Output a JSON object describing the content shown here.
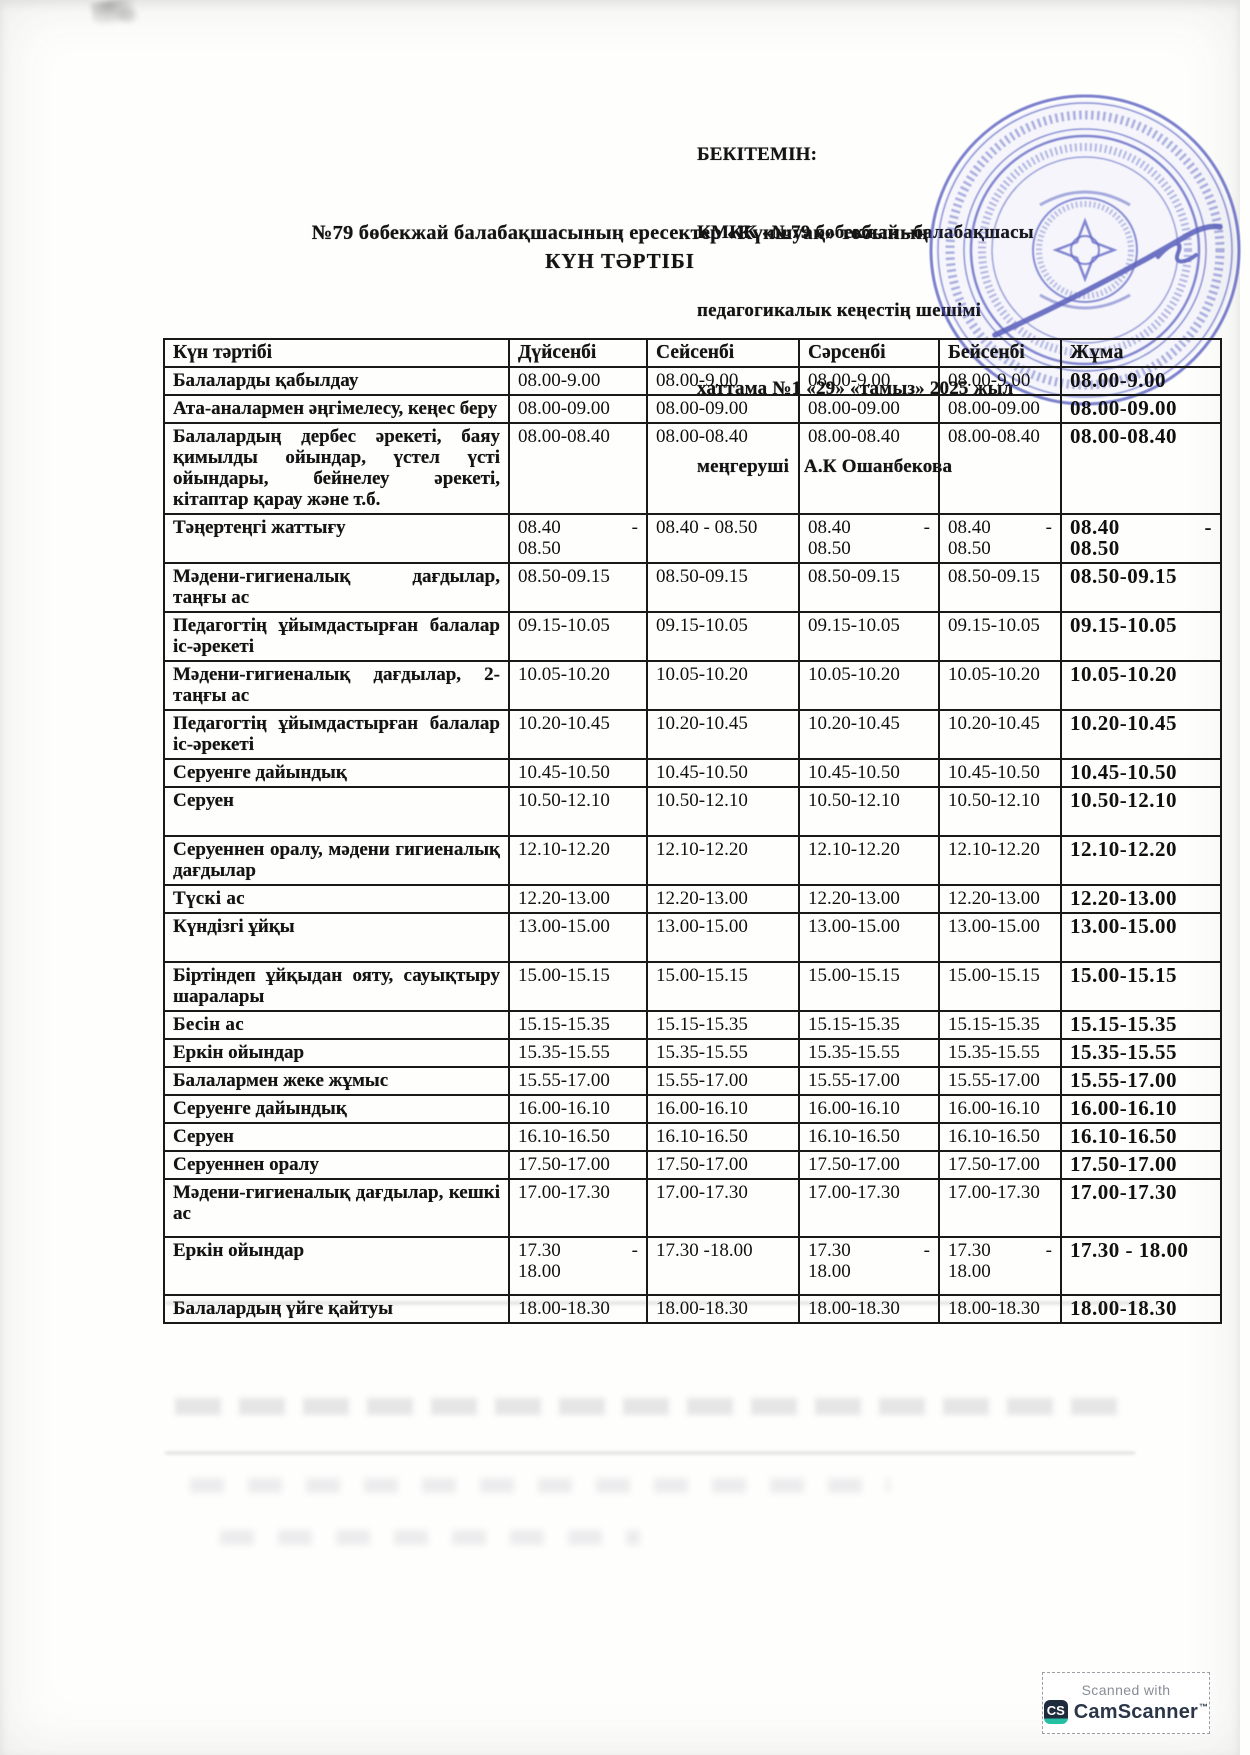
{
  "approval": {
    "lines": [
      "БЕКІТЕМІН:",
      "КМКК «№79 бөбекжай –балабақшасы",
      "педагогикалык кеңестің шешімі",
      "хаттама №1 «29» «тамыз» 2025 жыл",
      "меңгеруші   А.К Ошанбекова"
    ]
  },
  "title": {
    "line1": "№79 бөбекжай балабақшасының  ересектер «Күншуақ» тобының",
    "line2": "КҮН ТӘРТІБІ"
  },
  "table": {
    "headers": [
      "Күн тәртібі",
      "Дүйсенбі",
      "Сейсенбі",
      "Сәрсенбі",
      "Бейсенбі",
      "Жұма"
    ],
    "rows": [
      {
        "activity": "Балаларды қабылдау",
        "times": [
          "08.00-9.00",
          "08.00-9.00",
          "08.00-9.00",
          "08.00-9.00",
          "08.00-9.00"
        ]
      },
      {
        "activity": "Ата-аналармен әңгімелесу, кеңес беру",
        "times": [
          "08.00-09.00",
          "08.00-09.00",
          "08.00-09.00",
          "08.00-09.00",
          "08.00-09.00"
        ]
      },
      {
        "activity": "Балалардың дербес әрекеті, баяу қимылды ойындар, үстел үсті ойындары, бейнелеу әрекеті, кітаптар қарау және т.б.",
        "times": [
          "08.00-08.40",
          "08.00-08.40",
          "08.00-08.40",
          "08.00-08.40",
          "08.00-08.40"
        ]
      },
      {
        "activity": "Тәңертеңгі жаттығу",
        "times": [
          "08.40 - 08.50",
          "08.40 - 08.50",
          "08.40 - 08.50",
          "08.40 - 08.50",
          "08.40 - 08.50"
        ],
        "split": [
          0,
          2,
          3,
          4
        ]
      },
      {
        "activity": "Мәдени-гигиеналық дағдылар, таңғы ас",
        "times": [
          "08.50-09.15",
          "08.50-09.15",
          "08.50-09.15",
          "08.50-09.15",
          "08.50-09.15"
        ]
      },
      {
        "activity": "Педагогтің ұйымдастырған балалар іс-әрекеті",
        "times": [
          "09.15-10.05",
          "09.15-10.05",
          "09.15-10.05",
          "09.15-10.05",
          "09.15-10.05"
        ]
      },
      {
        "activity": "Мәдени-гигиеналық дағдылар, 2-таңғы ас",
        "times": [
          "10.05-10.20",
          "10.05-10.20",
          "10.05-10.20",
          "10.05-10.20",
          "10.05-10.20"
        ]
      },
      {
        "activity": "Педагогтің ұйымдастырған балалар іс-әрекеті",
        "times": [
          "10.20-10.45",
          "10.20-10.45",
          "10.20-10.45",
          "10.20-10.45",
          "10.20-10.45"
        ]
      },
      {
        "activity": "Серуенге дайындық",
        "times": [
          "10.45-10.50",
          "10.45-10.50",
          "10.45-10.50",
          "10.45-10.50",
          "10.45-10.50"
        ]
      },
      {
        "activity": "Серуен",
        "times": [
          "10.50-12.10",
          "10.50-12.10",
          "10.50-12.10",
          "10.50-12.10",
          "10.50-12.10"
        ],
        "tall": true
      },
      {
        "activity": "Серуеннен оралу, мәдени гигиеналық дағдылар",
        "times": [
          "12.10-12.20",
          "12.10-12.20",
          "12.10-12.20",
          "12.10-12.20",
          "12.10-12.20"
        ]
      },
      {
        "activity": "Түскі ас",
        "times": [
          "12.20-13.00",
          "12.20-13.00",
          "12.20-13.00",
          "12.20-13.00",
          "12.20-13.00"
        ],
        "emph": true
      },
      {
        "activity": "Күндізгі ұйқы",
        "times": [
          "13.00-15.00",
          "13.00-15.00",
          "13.00-15.00",
          "13.00-15.00",
          "13.00-15.00"
        ],
        "tall": true
      },
      {
        "activity": "Біртіндеп ұйқыдан ояту, сауықтыру шаралары",
        "times": [
          "15.00-15.15",
          "15.00-15.15",
          "15.00-15.15",
          "15.00-15.15",
          "15.00-15.15"
        ]
      },
      {
        "activity": "Бесін ас",
        "times": [
          "15.15-15.35",
          "15.15-15.35",
          "15.15-15.35",
          "15.15-15.35",
          "15.15-15.35"
        ],
        "emph": true
      },
      {
        "activity": "Еркін ойындар",
        "times": [
          "15.35-15.55",
          "15.35-15.55",
          "15.35-15.55",
          "15.35-15.55",
          "15.35-15.55"
        ]
      },
      {
        "activity": "Балалармен жеке жұмыс",
        "times": [
          "15.55-17.00",
          "15.55-17.00",
          "15.55-17.00",
          "15.55-17.00",
          "15.55-17.00"
        ]
      },
      {
        "activity": "Серуенге дайындық",
        "times": [
          "16.00-16.10",
          "16.00-16.10",
          "16.00-16.10",
          "16.00-16.10",
          "16.00-16.10"
        ]
      },
      {
        "activity": "Серуен",
        "times": [
          "16.10-16.50",
          "16.10-16.50",
          "16.10-16.50",
          "16.10-16.50",
          "16.10-16.50"
        ]
      },
      {
        "activity": "Серуеннен оралу",
        "times": [
          "17.50-17.00",
          "17.50-17.00",
          "17.50-17.00",
          "17.50-17.00",
          "17.50-17.00"
        ]
      },
      {
        "activity": "Мәдени-гигиеналық дағдылар, кешкі ас",
        "times": [
          "17.00-17.30",
          "17.00-17.30",
          "17.00-17.30",
          "17.00-17.30",
          "17.00-17.30"
        ],
        "tall2": true
      },
      {
        "activity": "Еркін ойындар",
        "times": [
          "17.30 - 18.00",
          "17.30 -18.00",
          "17.30 - 18.00",
          "17.30 - 18.00",
          "17.30 - 18.00"
        ],
        "split": [
          0,
          2,
          3
        ],
        "tall2": true
      },
      {
        "activity": "Балалардың үйге қайтуы",
        "times": [
          "18.00-18.30",
          "18.00-18.30",
          "18.00-18.30",
          "18.00-18.30",
          "18.00-18.30"
        ]
      }
    ]
  },
  "stamp": {
    "color": "#434ab8"
  },
  "badge": {
    "scanned_with": "Scanned with",
    "logo_text": "CS",
    "brand": "CamScanner",
    "tm": "™"
  },
  "colors": {
    "paper": "#fefefd",
    "ink": "#141414",
    "stamp_blue": "#434ab8",
    "badge_navy": "#1e2b3c",
    "badge_teal": "#27bfa3",
    "badge_gray": "#878d96"
  }
}
